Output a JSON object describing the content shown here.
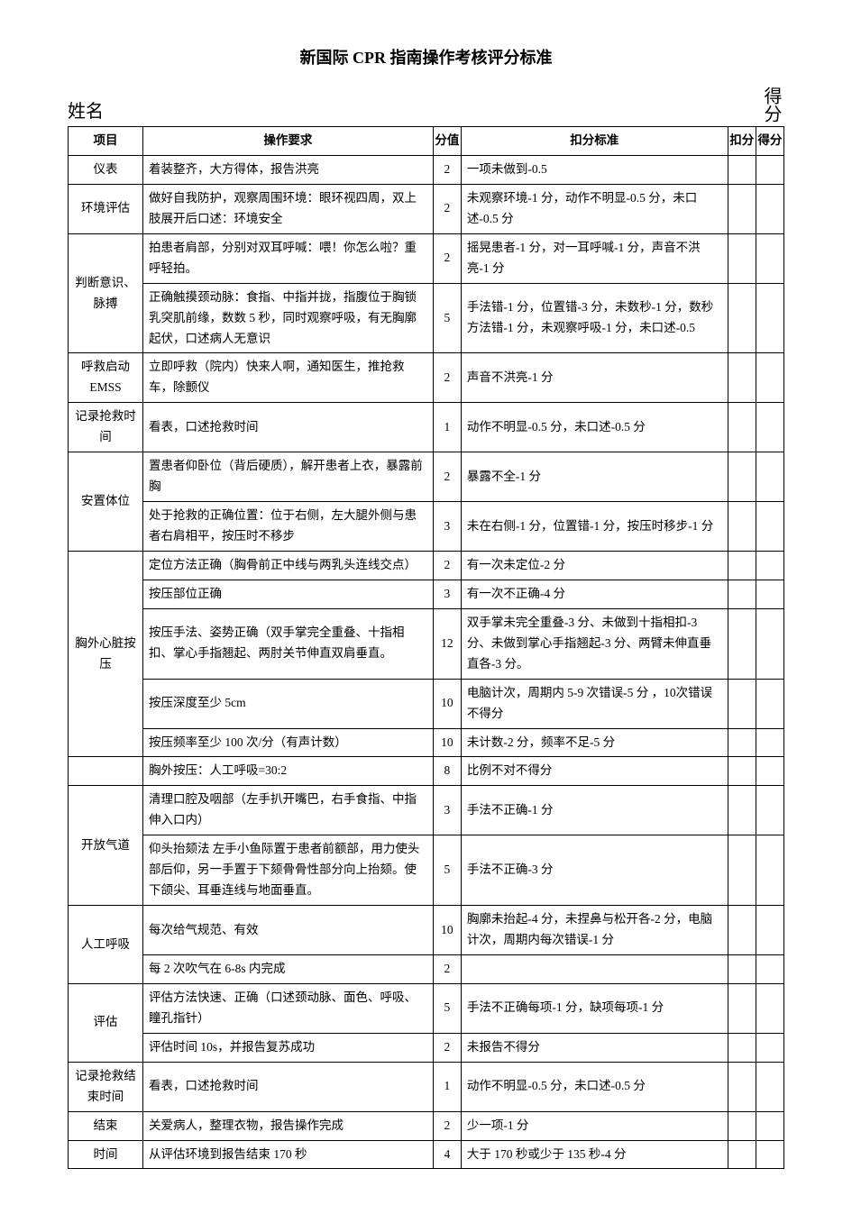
{
  "title": "新国际 CPR 指南操作考核评分标准",
  "labels": {
    "name": "姓名",
    "score_right": "得分"
  },
  "headers": {
    "item": "项目",
    "requirement": "操作要求",
    "score": "分值",
    "deduct_std": "扣分标准",
    "deduct": "扣分",
    "got": "得分"
  },
  "rows": [
    {
      "item": "仪表",
      "req": "着装整齐，大方得体，报告洪亮",
      "score": "2",
      "std": "一项未做到-0.5",
      "rowspan": 1
    },
    {
      "item": "环境评估",
      "req": "做好自我防护，观察周围环境：眼环视四周，双上肢展开后口述：环境安全",
      "score": "2",
      "std": "未观察环境-1 分，动作不明显-0.5 分，未口述-0.5 分",
      "rowspan": 1
    },
    {
      "item": "判断意识、脉搏",
      "req": "拍患者肩部，分别对双耳呼喊：喂！你怎么啦？重呼轻拍。",
      "score": "2",
      "std": "摇晃患者-1 分，对一耳呼喊-1 分，声音不洪亮-1 分",
      "rowspan": 2
    },
    {
      "item": "",
      "req": "正确触摸颈动脉：食指、中指并拢，指腹位于胸锁乳突肌前缘，数数 5 秒，同时观察呼吸，有无胸廓起伏，口述病人无意识",
      "score": "5",
      "std": "手法错-1 分，位置错-3 分，未数秒-1 分，数秒方法错-1 分，未观察呼吸-1 分，未口述-0.5",
      "rowspan": 0
    },
    {
      "item": "呼救启动EMSS",
      "req": "立即呼救（院内）快来人啊，通知医生，推抢救车，除颤仪",
      "score": "2",
      "std": "声音不洪亮-1 分",
      "rowspan": 1
    },
    {
      "item": "记录抢救时间",
      "req": "看表，口述抢救时间",
      "score": "1",
      "std": "动作不明显-0.5 分，未口述-0.5 分",
      "rowspan": 1
    },
    {
      "item": "安置体位",
      "req": "置患者仰卧位（背后硬质），解开患者上衣，暴露前胸",
      "score": "2",
      "std": "暴露不全-1 分",
      "rowspan": 2
    },
    {
      "item": "",
      "req": "处于抢救的正确位置：位于右侧，左大腿外侧与患者右肩相平，按压时不移步",
      "score": "3",
      "std": "未在右侧-1 分，位置错-1 分，按压时移步-1 分",
      "rowspan": 0
    },
    {
      "item": "胸外心脏按压",
      "req": "定位方法正确（胸骨前正中线与两乳头连线交点）",
      "score": "2",
      "std": "有一次未定位-2 分",
      "rowspan": 5
    },
    {
      "item": "",
      "req": "按压部位正确",
      "score": "3",
      "std": "有一次不正确-4 分",
      "rowspan": 0
    },
    {
      "item": "",
      "req": "按压手法、姿势正确（双手掌完全重叠、十指相扣、掌心手指翘起、两肘关节伸直双肩垂直。",
      "score": "12",
      "std": "双手掌未完全重叠-3 分、未做到十指相扣-3 分、未做到掌心手指翘起-3 分、两臂未伸直垂直各-3 分。",
      "rowspan": 0
    },
    {
      "item": "",
      "req": "按压深度至少 5cm",
      "score": "10",
      "std": "电脑计次，周期内 5-9 次错误-5 分 ，10次错误不得分",
      "rowspan": 0
    },
    {
      "item": "",
      "req": "按压频率至少 100 次/分（有声计数）",
      "score": "10",
      "std": "未计数-2 分，频率不足-5 分",
      "rowspan": 0
    },
    {
      "item": "",
      "req": "胸外按压：人工呼吸=30:2",
      "score": "8",
      "std": "比例不对不得分",
      "rowspan": 1,
      "single": true
    },
    {
      "item": "开放气道",
      "req": "清理口腔及咽部（左手扒开嘴巴，右手食指、中指伸入口内）",
      "score": "3",
      "std": "手法不正确-1 分",
      "rowspan": 2
    },
    {
      "item": "",
      "req": "仰头抬颏法   左手小鱼际置于患者前额部，用力使头部后仰，另一手置于下颏骨骨性部分向上抬颏。使下颌尖、耳垂连线与地面垂直。",
      "score": "5",
      "std": "手法不正确-3 分",
      "rowspan": 0
    },
    {
      "item": "人工呼吸",
      "req": "每次给气规范、有效",
      "score": "10",
      "std": "胸廓未抬起-4 分，未捏鼻与松开各-2 分，电脑计次，周期内每次错误-1 分",
      "rowspan": 2
    },
    {
      "item": "",
      "req": "每 2 次吹气在 6-8s 内完成",
      "score": "2",
      "std": "",
      "rowspan": 0
    },
    {
      "item": "评估",
      "req": "评估方法快速、正确（口述颈动脉、面色、呼吸、瞳孔指针）",
      "score": "5",
      "std": "手法不正确每项-1 分，缺项每项-1 分",
      "rowspan": 2
    },
    {
      "item": "",
      "req": "评估时间 10s，并报告复苏成功",
      "score": "2",
      "std": "未报告不得分",
      "rowspan": 0
    },
    {
      "item": "记录抢救结束时间",
      "req": "看表，口述抢救时间",
      "score": "1",
      "std": "动作不明显-0.5 分，未口述-0.5 分",
      "rowspan": 1
    },
    {
      "item": "结束",
      "req": "关爱病人，整理衣物，报告操作完成",
      "score": "2",
      "std": "少一项-1 分",
      "rowspan": 1
    },
    {
      "item": "时间",
      "req": "从评估环境到报告结束 170 秒",
      "score": "4",
      "std": "大于 170 秒或少于 135 秒-4 分",
      "rowspan": 1
    }
  ]
}
